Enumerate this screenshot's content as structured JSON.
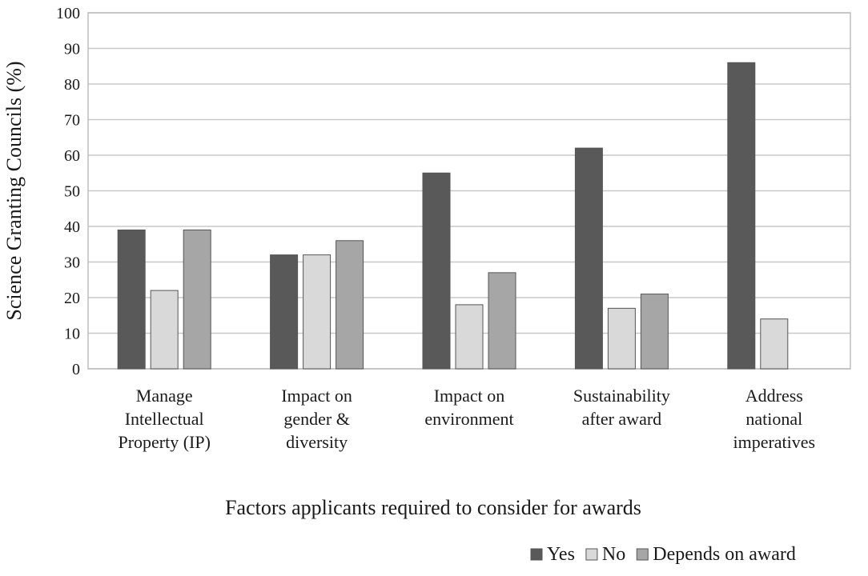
{
  "chart_data": {
    "type": "bar",
    "title": "",
    "xlabel": "Factors applicants required to consider for awards",
    "ylabel": "Science Granting Councils (%)",
    "ylim": [
      0,
      100
    ],
    "yticks": [
      0,
      10,
      20,
      30,
      40,
      50,
      60,
      70,
      80,
      90,
      100
    ],
    "grid": true,
    "legend_position": "bottom-right",
    "categories": [
      [
        "Manage",
        "Intellectual",
        "Property (IP)"
      ],
      [
        "Impact on",
        "gender &",
        "diversity"
      ],
      [
        "Impact on",
        "environment"
      ],
      [
        "Sustainability",
        "after award"
      ],
      [
        "Address",
        "national",
        "imperatives"
      ]
    ],
    "series": [
      {
        "name": "Yes",
        "color": "#595959",
        "values": [
          39,
          32,
          55,
          62,
          86
        ]
      },
      {
        "name": "No",
        "color": "#d9d9d9",
        "values": [
          22,
          32,
          18,
          17,
          14
        ]
      },
      {
        "name": "Depends on award",
        "color": "#a6a6a6",
        "values": [
          39,
          36,
          27,
          21,
          0
        ]
      }
    ]
  }
}
